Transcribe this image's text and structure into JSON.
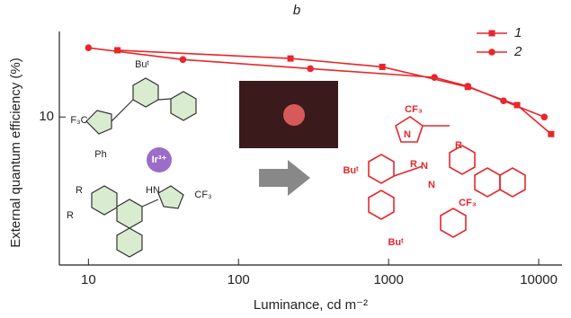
{
  "chart_data": {
    "type": "line",
    "title": "b",
    "xlabel": "Luminance, cd m⁻²",
    "ylabel": "External quantum efficiency (%)",
    "xscale": "log",
    "yscale": "log",
    "xlim": [
      6.4,
      14300
    ],
    "ylim": [
      2.2,
      24
    ],
    "xticks": [
      10,
      100,
      1000,
      10000
    ],
    "yticks": [
      10
    ],
    "legend": "upper right",
    "series": [
      {
        "name": "1",
        "color": "#e8262b",
        "marker": "square",
        "x": [
          15.6,
          222,
          908,
          3370,
          7180,
          12100
        ],
        "values": [
          19.8,
          18.2,
          16.7,
          13.6,
          11.3,
          8.4
        ]
      },
      {
        "name": "2",
        "color": "#e8262b",
        "marker": "circle",
        "x": [
          10,
          42.6,
          301,
          2020,
          3370,
          5830,
          10900
        ],
        "values": [
          20.3,
          18.0,
          16.4,
          15.0,
          13.7,
          11.8,
          10
        ]
      }
    ],
    "annotations": [
      "Buᵗ",
      "F₃C",
      "Ph",
      "Ir³⁺",
      "R",
      "R",
      "HN",
      "CF₃",
      "N",
      "N",
      "CF₃",
      "Buᵗ",
      "R",
      "R",
      "N",
      "CF₃",
      "Buᵗ"
    ]
  }
}
